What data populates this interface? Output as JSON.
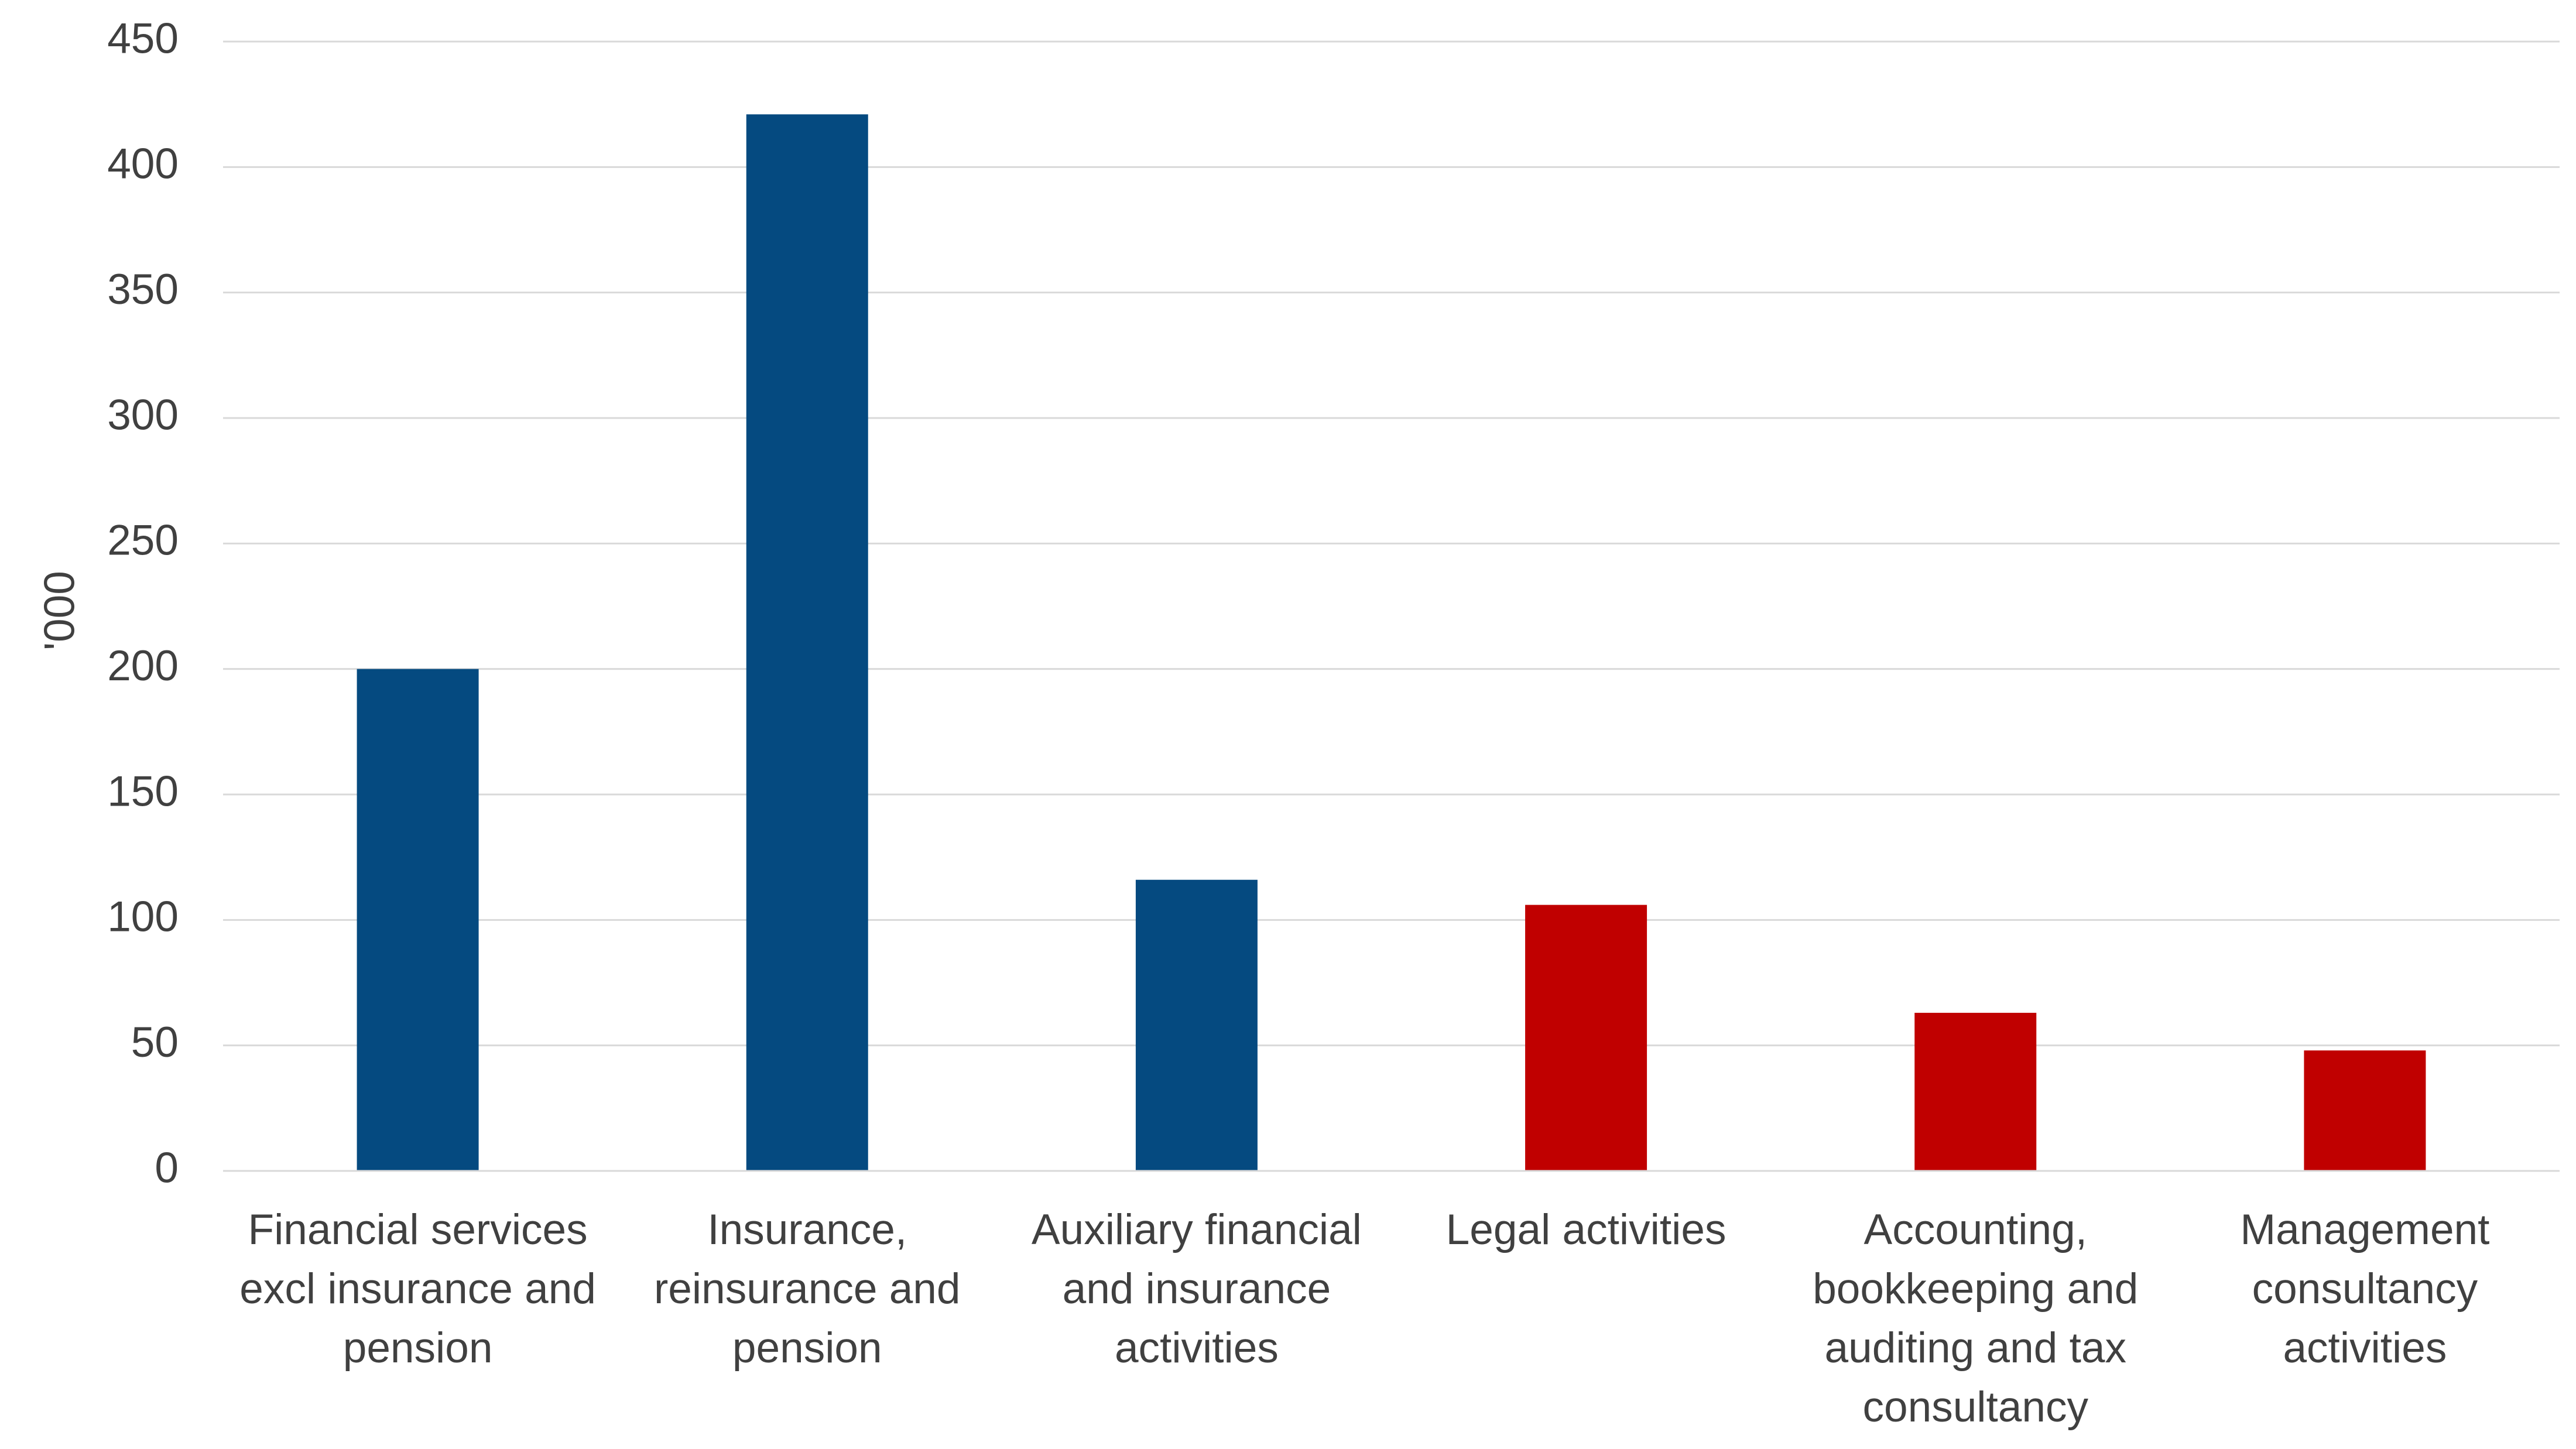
{
  "chart_data": {
    "type": "bar",
    "y_label": "'000",
    "categories": [
      "Financial services excl insurance and pension",
      "Insurance, reinsurance and pension",
      "Auxiliary financial and insurance activities",
      "Legal activities",
      "Accounting, bookkeeping and auditing and tax consultancy",
      "Management consultancy activities"
    ],
    "values": [
      200,
      421,
      116,
      106,
      63,
      48
    ],
    "colors": [
      "#054a80",
      "#054a80",
      "#054a80",
      "#c00000",
      "#c00000",
      "#c00000"
    ],
    "ylim": [
      0,
      450
    ],
    "yticks": [
      0,
      50,
      100,
      150,
      200,
      250,
      300,
      350,
      400,
      450
    ],
    "grid": true
  }
}
